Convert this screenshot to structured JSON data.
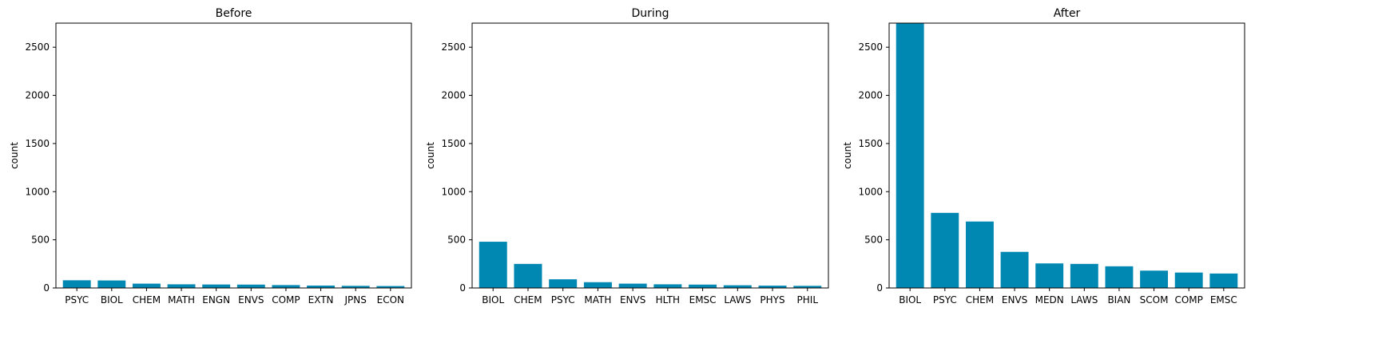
{
  "bar_color": "#0088b2",
  "chart_data": [
    {
      "type": "bar",
      "title": "Before",
      "xlabel": "",
      "ylabel": "count",
      "ylim": [
        0,
        2750
      ],
      "yticks": [
        0,
        500,
        1000,
        1500,
        2000,
        2500
      ],
      "grid": false,
      "categories": [
        "PSYC",
        "BIOL",
        "CHEM",
        "MATH",
        "ENGN",
        "ENVS",
        "COMP",
        "EXTN",
        "JPNS",
        "ECON"
      ],
      "values": [
        80,
        78,
        45,
        38,
        36,
        35,
        30,
        25,
        22,
        20
      ]
    },
    {
      "type": "bar",
      "title": "During",
      "xlabel": "",
      "ylabel": "count",
      "ylim": [
        0,
        2750
      ],
      "yticks": [
        0,
        500,
        1000,
        1500,
        2000,
        2500
      ],
      "grid": false,
      "categories": [
        "BIOL",
        "CHEM",
        "PSYC",
        "MATH",
        "ENVS",
        "HLTH",
        "EMSC",
        "LAWS",
        "PHYS",
        "PHIL"
      ],
      "values": [
        480,
        250,
        90,
        60,
        45,
        38,
        35,
        28,
        24,
        22
      ]
    },
    {
      "type": "bar",
      "title": "After",
      "xlabel": "",
      "ylabel": "count",
      "ylim": [
        0,
        2750
      ],
      "yticks": [
        0,
        500,
        1000,
        1500,
        2000,
        2500
      ],
      "grid": false,
      "categories": [
        "BIOL",
        "PSYC",
        "CHEM",
        "ENVS",
        "MEDN",
        "LAWS",
        "BIAN",
        "SCOM",
        "COMP",
        "EMSC"
      ],
      "values": [
        2750,
        780,
        690,
        375,
        255,
        250,
        225,
        180,
        160,
        150
      ]
    }
  ]
}
